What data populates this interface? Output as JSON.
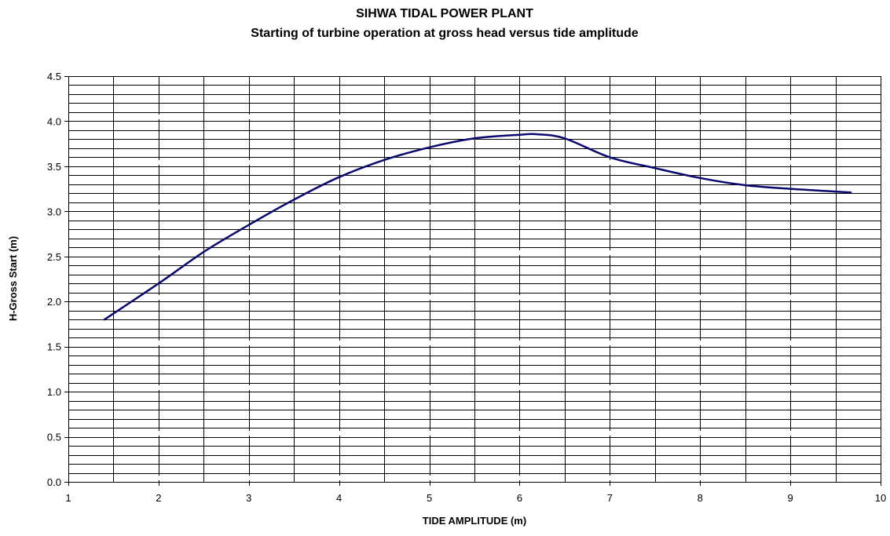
{
  "chart_data": {
    "type": "line",
    "title": "SIHWA TIDAL POWER PLANT",
    "subtitle": "Starting of turbine operation at gross head versus tide amplitude",
    "xlabel": "TIDE AMPLITUDE (m)",
    "ylabel": "H-Gross Start (m)",
    "xlim": [
      1,
      10
    ],
    "ylim": [
      0,
      4.5
    ],
    "x_ticks": [
      "1",
      "2",
      "3",
      "4",
      "5",
      "6",
      "7",
      "8",
      "9",
      "10"
    ],
    "y_ticks": [
      "0.0",
      "0.5",
      "1.0",
      "1.5",
      "2.0",
      "2.5",
      "3.0",
      "3.5",
      "4.0",
      "4.5"
    ],
    "grid": true,
    "legend": "none",
    "series": [
      {
        "color": "#0a0a6e",
        "x": [
          1.4,
          2.0,
          2.5,
          3.0,
          3.5,
          4.0,
          4.5,
          5.0,
          5.5,
          6.0,
          6.2,
          6.5,
          7.0,
          7.5,
          8.0,
          8.5,
          9.0,
          9.5,
          9.67
        ],
        "y": [
          1.8,
          2.2,
          2.55,
          2.85,
          3.13,
          3.38,
          3.57,
          3.71,
          3.81,
          3.85,
          3.855,
          3.81,
          3.6,
          3.48,
          3.37,
          3.29,
          3.25,
          3.22,
          3.21
        ]
      }
    ]
  }
}
